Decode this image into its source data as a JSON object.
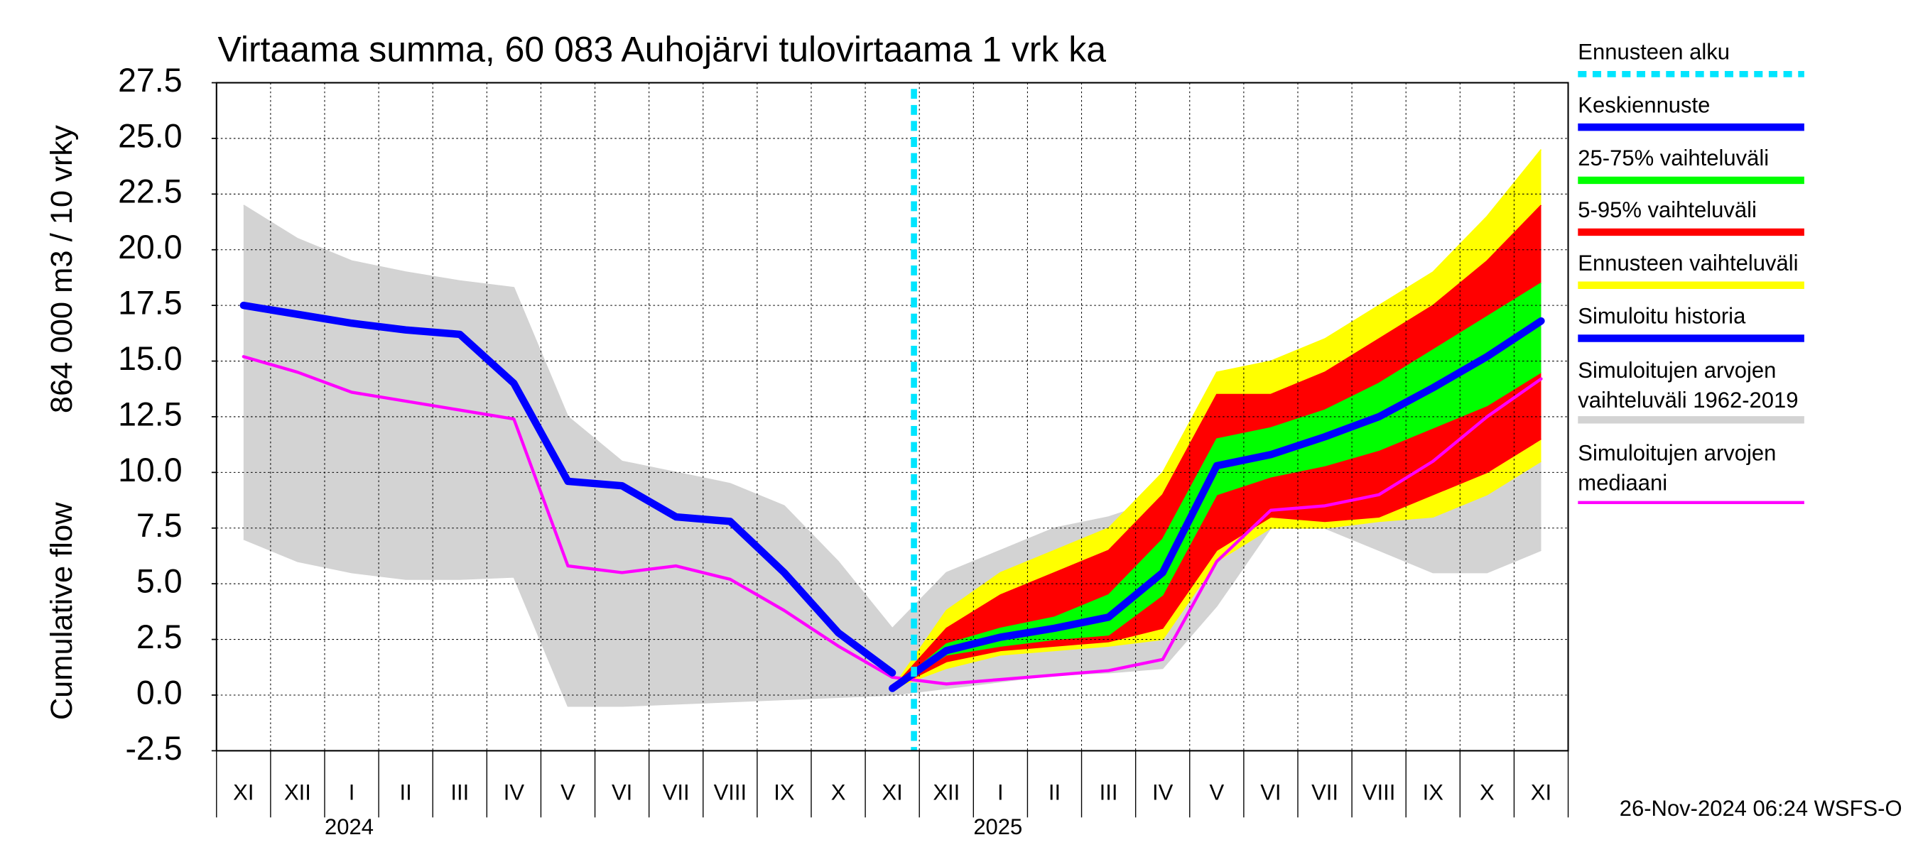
{
  "chart_data": {
    "type": "band-line",
    "title": "Virtaama summa, 60 083 Auhojärvi tulovirtaama 1 vrk ka",
    "ylabel": [
      "864 000 m3 / 10 vrky",
      "Cumulative flow"
    ],
    "footer": "26-Nov-2024 06:24 WSFS-O",
    "categories": [
      "XI",
      "XII",
      "I",
      "II",
      "III",
      "IV",
      "V",
      "VI",
      "VII",
      "VIII",
      "IX",
      "X",
      "XI",
      "XII",
      "I",
      "II",
      "III",
      "IV",
      "V",
      "VI",
      "VII",
      "VIII",
      "IX",
      "X",
      "XI"
    ],
    "years": [
      null,
      null,
      "2024",
      null,
      null,
      null,
      null,
      null,
      null,
      null,
      null,
      null,
      null,
      null,
      "2025",
      null,
      null,
      null,
      null,
      null,
      null,
      null,
      null,
      null,
      null
    ],
    "ylim": [
      -2.5,
      27.5
    ],
    "yticks": [
      -2.5,
      {
        "value": 0,
        "label": "0.0"
      },
      2.5,
      {
        "value": 5,
        "label": "5.0"
      },
      7.5,
      {
        "value": 10,
        "label": "10.0"
      },
      12.5,
      {
        "value": 15,
        "label": "15.0"
      },
      17.5,
      {
        "value": 20,
        "label": "20.0"
      },
      22.5,
      {
        "value": 25,
        "label": "25.0"
      },
      27.5
    ],
    "grid": true,
    "forecast_marker": {
      "name": "Ennusteen alku",
      "color": "#00e5ff"
    },
    "bands": [
      {
        "name": "Simuloitujen arvojen vaihteluväli 1962-2019",
        "color": "#d3d3d3",
        "lower": [
          7,
          6,
          5.5,
          5.2,
          5.2,
          5.3,
          -0.5,
          -0.5,
          -0.4,
          -0.3,
          -0.2,
          -0.1,
          0,
          0.3,
          0.6,
          0.9,
          1,
          1.2,
          4,
          7.5,
          7.5,
          6.5,
          5.5,
          5.5,
          6.5
        ],
        "upper": [
          22,
          20.5,
          19.5,
          19,
          18.6,
          18.3,
          12.5,
          10.5,
          10,
          9.5,
          8.5,
          6,
          3,
          5.5,
          6.5,
          7.5,
          8,
          8.8,
          10,
          10.5,
          10.5,
          10.5,
          10.5,
          11,
          11
        ]
      },
      {
        "name": "Ennusteen vaihteluväli",
        "color": "#ffff00",
        "lower": [
          null,
          null,
          null,
          null,
          null,
          null,
          null,
          null,
          null,
          null,
          null,
          null,
          0.3,
          1.2,
          1.8,
          2,
          2.2,
          2.5,
          6,
          7.5,
          7.5,
          7.8,
          8,
          9,
          10.5
        ],
        "upper": [
          null,
          null,
          null,
          null,
          null,
          null,
          null,
          null,
          null,
          null,
          null,
          null,
          0.3,
          3.8,
          5.5,
          6.5,
          7.5,
          10,
          14.5,
          15,
          16,
          17.5,
          19,
          21.5,
          24.5
        ]
      },
      {
        "name": "5-95% vaihteluväli",
        "color": "#ff0000",
        "lower": [
          null,
          null,
          null,
          null,
          null,
          null,
          null,
          null,
          null,
          null,
          null,
          null,
          0.3,
          1.5,
          2,
          2.2,
          2.4,
          3,
          6.5,
          8,
          7.8,
          8,
          9,
          10,
          11.5
        ],
        "upper": [
          null,
          null,
          null,
          null,
          null,
          null,
          null,
          null,
          null,
          null,
          null,
          null,
          0.3,
          3,
          4.5,
          5.5,
          6.5,
          9,
          13.5,
          13.5,
          14.5,
          16,
          17.5,
          19.5,
          22
        ]
      },
      {
        "name": "25-75% vaihteluväli",
        "color": "#00ff00",
        "lower": [
          null,
          null,
          null,
          null,
          null,
          null,
          null,
          null,
          null,
          null,
          null,
          null,
          0.3,
          1.8,
          2.2,
          2.5,
          2.7,
          4.5,
          9,
          9.8,
          10.3,
          11,
          12,
          13,
          14.5
        ],
        "upper": [
          null,
          null,
          null,
          null,
          null,
          null,
          null,
          null,
          null,
          null,
          null,
          null,
          0.3,
          2.3,
          3,
          3.5,
          4.5,
          7,
          11.5,
          12,
          12.8,
          14,
          15.5,
          17,
          18.5
        ]
      }
    ],
    "series": [
      {
        "name": "Simuloitujen arvojen mediaani",
        "color": "#ff00ff",
        "width": 2.5,
        "values": [
          15.2,
          14.5,
          13.6,
          13.2,
          12.8,
          12.4,
          5.8,
          5.5,
          5.8,
          5.2,
          3.8,
          2.2,
          0.8,
          0.5,
          0.7,
          0.9,
          1.1,
          1.6,
          6,
          8.3,
          8.5,
          9,
          10.5,
          12.5,
          14.2
        ]
      },
      {
        "name": "Simuloitu historia",
        "color": "#0000ff",
        "width": 6,
        "values": [
          17.5,
          17.1,
          16.7,
          16.4,
          16.2,
          14,
          9.6,
          9.4,
          8,
          7.8,
          5.5,
          2.8,
          1,
          null,
          null,
          null,
          null,
          null,
          null,
          null,
          null,
          null,
          null,
          null,
          null
        ]
      },
      {
        "name": "Keskiennuste",
        "color": "#0000ff",
        "width": 6,
        "values": [
          null,
          null,
          null,
          null,
          null,
          null,
          null,
          null,
          null,
          null,
          null,
          null,
          0.3,
          2,
          2.6,
          3,
          3.5,
          5.5,
          10.3,
          10.8,
          11.6,
          12.5,
          13.8,
          15.2,
          16.8
        ]
      }
    ],
    "legend": [
      {
        "ref": "forecast_marker"
      },
      {
        "ref": "series.2"
      },
      {
        "ref": "bands.3"
      },
      {
        "ref": "bands.2"
      },
      {
        "ref": "bands.1"
      },
      {
        "ref": "series.1"
      },
      {
        "ref": "bands.0"
      },
      {
        "ref": "series.0"
      }
    ]
  }
}
